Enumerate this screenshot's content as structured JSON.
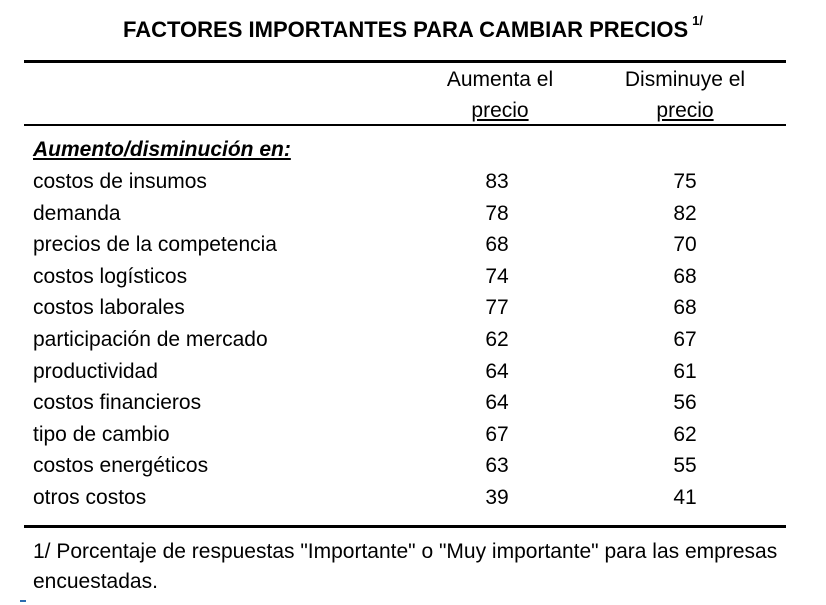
{
  "title": {
    "text": "FACTORES IMPORTANTES PARA CAMBIAR PRECIOS",
    "footnote_ref": "1/"
  },
  "columns": [
    {
      "line1": "Aumenta el",
      "line2": "precio"
    },
    {
      "line1": "Disminuye el",
      "line2": "precio"
    }
  ],
  "section_label": "Aumento/disminución en:",
  "rows": [
    {
      "label": "costos de insumos",
      "increase": "83",
      "decrease": "75"
    },
    {
      "label": "demanda",
      "increase": "78",
      "decrease": "82"
    },
    {
      "label": "precios de la competencia",
      "increase": "68",
      "decrease": "70"
    },
    {
      "label": "costos logísticos",
      "increase": "74",
      "decrease": "68"
    },
    {
      "label": "costos laborales",
      "increase": "77",
      "decrease": "68"
    },
    {
      "label": "participación de mercado",
      "increase": "62",
      "decrease": "67"
    },
    {
      "label": "productividad",
      "increase": "64",
      "decrease": "61"
    },
    {
      "label": "costos financieros",
      "increase": "64",
      "decrease": "56"
    },
    {
      "label": "tipo de cambio",
      "increase": "67",
      "decrease": "62"
    },
    {
      "label": "costos energéticos",
      "increase": "63",
      "decrease": "55"
    },
    {
      "label": "otros costos",
      "increase": "39",
      "decrease": "41"
    }
  ],
  "footnote": "1/ Porcentaje de respuestas \"Importante\" o \"Muy importante\" para las empresas encuestadas."
}
